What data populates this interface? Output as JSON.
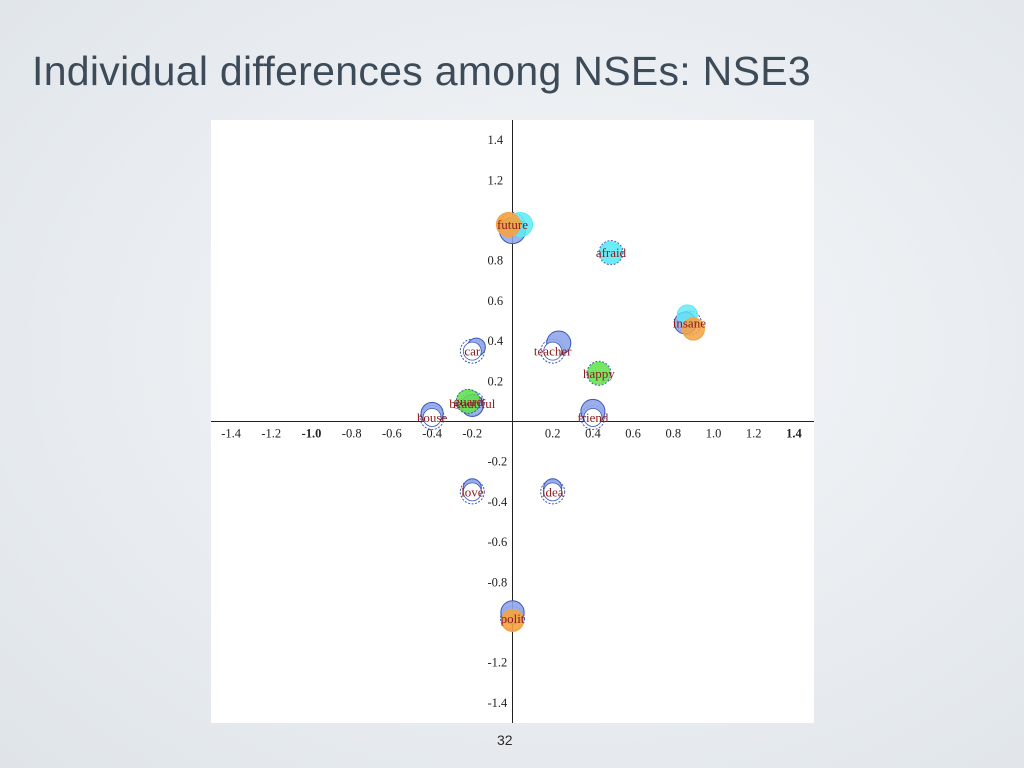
{
  "slide": {
    "title": "Individual differences among NSEs: NSE3",
    "page_number": "32"
  },
  "colors": {
    "blue": "#8fa6ea",
    "blue_stroke": "#3c57b8",
    "cyan": "#5ceaf5",
    "orange": "#f6a23e",
    "green": "#5ee24a",
    "label": "#8b1a1a"
  },
  "chart_data": {
    "type": "scatter",
    "title": "",
    "xlabel": "",
    "ylabel": "",
    "xlim": [
      -1.5,
      1.5
    ],
    "ylim": [
      -1.5,
      1.5
    ],
    "grid": false,
    "legend": "none",
    "x_ticks": [
      {
        "value": -1.4,
        "label": "-1.4",
        "bold": false
      },
      {
        "value": -1.2,
        "label": "-1.2",
        "bold": false
      },
      {
        "value": -1.0,
        "label": "-1.0",
        "bold": true
      },
      {
        "value": -0.8,
        "label": "-0.8",
        "bold": false
      },
      {
        "value": -0.6,
        "label": "-0.6",
        "bold": false
      },
      {
        "value": -0.4,
        "label": "-0.4",
        "bold": false
      },
      {
        "value": -0.2,
        "label": "-0.2",
        "bold": false
      },
      {
        "value": 0.2,
        "label": "0.2",
        "bold": false
      },
      {
        "value": 0.4,
        "label": "0.4",
        "bold": false
      },
      {
        "value": 0.6,
        "label": "0.6",
        "bold": false
      },
      {
        "value": 0.8,
        "label": "0.8",
        "bold": false
      },
      {
        "value": 1.0,
        "label": "1.0",
        "bold": false
      },
      {
        "value": 1.2,
        "label": "1.2",
        "bold": false
      },
      {
        "value": 1.4,
        "label": "1.4",
        "bold": true
      }
    ],
    "y_ticks": [
      {
        "value": 1.4,
        "label": "1.4"
      },
      {
        "value": 1.2,
        "label": "1.2"
      },
      {
        "value": 0.8,
        "label": "0.8"
      },
      {
        "value": 0.6,
        "label": "0.6"
      },
      {
        "value": 0.4,
        "label": "0.4"
      },
      {
        "value": 0.2,
        "label": "0.2"
      },
      {
        "value": -0.2,
        "label": "-0.2"
      },
      {
        "value": -0.4,
        "label": "-0.4"
      },
      {
        "value": -0.6,
        "label": "-0.6"
      },
      {
        "value": -0.8,
        "label": "-0.8"
      },
      {
        "value": -1.2,
        "label": "-1.2"
      },
      {
        "value": -1.4,
        "label": "-1.4"
      }
    ],
    "points": [
      {
        "word": "future",
        "shown": "future",
        "x": 0.0,
        "y": 0.98,
        "blobs": [
          {
            "dx": 0.0,
            "dy": -0.03,
            "r": 0.065,
            "color": "blue",
            "alpha": 0.85
          },
          {
            "dx": 0.04,
            "dy": 0.0,
            "r": 0.06,
            "color": "cyan",
            "alpha": 0.85
          },
          {
            "dx": -0.02,
            "dy": 0.0,
            "r": 0.06,
            "color": "orange",
            "alpha": 0.9
          }
        ]
      },
      {
        "word": "afraid",
        "shown": "afraid",
        "x": 0.49,
        "y": 0.84,
        "blobs": [
          {
            "dx": 0.0,
            "dy": 0.0,
            "r": 0.055,
            "color": "cyan",
            "alpha": 0.9
          }
        ]
      },
      {
        "word": "insane",
        "shown": "insane",
        "x": 0.88,
        "y": 0.49,
        "blobs": [
          {
            "dx": -0.02,
            "dy": 0.0,
            "r": 0.055,
            "color": "blue",
            "alpha": 0.85
          },
          {
            "dx": -0.01,
            "dy": 0.04,
            "r": 0.05,
            "color": "cyan",
            "alpha": 0.8
          },
          {
            "dx": 0.02,
            "dy": -0.03,
            "r": 0.055,
            "color": "orange",
            "alpha": 0.85
          }
        ]
      },
      {
        "word": "car",
        "shown": "car",
        "x": -0.2,
        "y": 0.35,
        "blobs": [
          {
            "dx": 0.02,
            "dy": 0.02,
            "r": 0.045,
            "color": "blue",
            "alpha": 0.9
          }
        ]
      },
      {
        "word": "teacher",
        "shown": "teacher",
        "x": 0.2,
        "y": 0.35,
        "blobs": [
          {
            "dx": 0.03,
            "dy": 0.04,
            "r": 0.06,
            "color": "blue",
            "alpha": 0.9
          }
        ]
      },
      {
        "word": "happy",
        "shown": "happy",
        "x": 0.43,
        "y": 0.24,
        "blobs": [
          {
            "dx": 0.0,
            "dy": 0.0,
            "r": 0.055,
            "color": "green",
            "alpha": 0.85
          }
        ]
      },
      {
        "word": "beautiful",
        "shown": "beautiful",
        "x": -0.2,
        "y": 0.09,
        "blobs": [
          {
            "dx": 0.0,
            "dy": -0.01,
            "r": 0.055,
            "color": "blue",
            "alpha": 0.85
          },
          {
            "dx": -0.02,
            "dy": 0.01,
            "r": 0.058,
            "color": "green",
            "alpha": 0.85
          }
        ]
      },
      {
        "word": "guard",
        "shown": "guard",
        "x": -0.22,
        "y": 0.1,
        "blobs": []
      },
      {
        "word": "house",
        "shown": "house",
        "x": -0.4,
        "y": 0.02,
        "blobs": [
          {
            "dx": 0.0,
            "dy": 0.02,
            "r": 0.055,
            "color": "blue",
            "alpha": 0.9
          }
        ]
      },
      {
        "word": "friend",
        "shown": "friend",
        "x": 0.4,
        "y": 0.02,
        "blobs": [
          {
            "dx": 0.0,
            "dy": 0.03,
            "r": 0.06,
            "color": "blue",
            "alpha": 0.9
          }
        ]
      },
      {
        "word": "love",
        "shown": "love",
        "x": -0.2,
        "y": -0.35,
        "blobs": [
          {
            "dx": 0.0,
            "dy": 0.02,
            "r": 0.045,
            "color": "blue",
            "alpha": 0.9
          }
        ]
      },
      {
        "word": "idea",
        "shown": "idea",
        "x": 0.2,
        "y": -0.35,
        "blobs": [
          {
            "dx": 0.0,
            "dy": 0.02,
            "r": 0.045,
            "color": "blue",
            "alpha": 0.9
          }
        ]
      },
      {
        "word": "polite",
        "shown": "polit",
        "x": 0.0,
        "y": -0.98,
        "blobs": [
          {
            "dx": 0.0,
            "dy": 0.03,
            "r": 0.058,
            "color": "blue",
            "alpha": 0.9
          },
          {
            "dx": 0.0,
            "dy": -0.01,
            "r": 0.055,
            "color": "orange",
            "alpha": 0.9
          }
        ]
      }
    ]
  }
}
